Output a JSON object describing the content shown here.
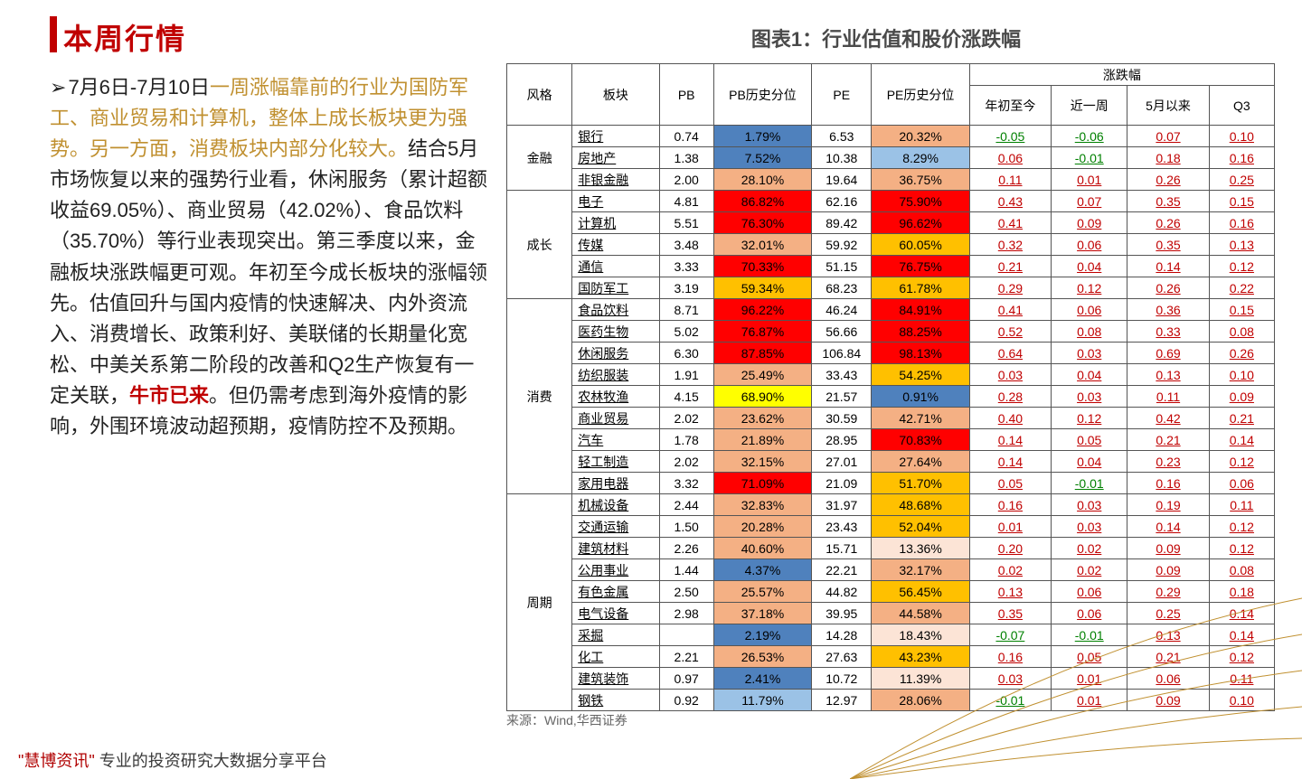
{
  "title": "本周行情",
  "chart_title": "图表1：行业估值和股价涨跌幅",
  "source": "来源：Wind,华西证券",
  "footer_brand": "\"慧博资讯\"",
  "footer_rest": " 专业的投资研究大数据分享平台",
  "paragraph": {
    "pre_bullet": "➢",
    "lead": "7月6日-7月10日",
    "highlight": "一周涨幅靠前的行业为国防军工、商业贸易和计算机，整体上成长板块更为强势。另一方面，消费板块内部分化较大。",
    "body_a": "结合5月市场恢复以来的强势行业看，休闲服务（累计超额收益69.05%）、商业贸易（42.02%）、食品饮料（35.70%）等行业表现突出。第三季度以来，金融板块涨跌幅更可观。年初至今成长板块的涨幅领先。估值回升与国内疫情的快速解决、内外资流入、消费增长、政策利好、美联储的长期量化宽松、中美关系第二阶段的改善和Q2生产恢复有一定关联，",
    "bull": "牛市已来",
    "body_b": "。但仍需考虑到海外疫情的影响，外围环境波动超预期，疫情防控不及预期。"
  },
  "table": {
    "head1": [
      "风格",
      "板块",
      "PB",
      "PB历史分位",
      "PE",
      "PE历史分位",
      "涨跌幅"
    ],
    "head2": [
      "年初至今",
      "近一周",
      "5月以来",
      "Q3"
    ],
    "col_widths": [
      "60px",
      "80px",
      "50px",
      "90px",
      "55px",
      "90px",
      "75px",
      "70px",
      "75px",
      "60px"
    ],
    "heat_colors": {
      "dark_red": "#ff0000",
      "orange": "#ffc000",
      "light_salmon": "#f4b084",
      "light_blue": "#9bc2e6",
      "blue": "#4f81bd",
      "yellow": "#ffff00",
      "pale": "#fce4d6",
      "white": "#ffffff"
    },
    "groups": [
      {
        "name": "金融",
        "span": 3,
        "rows": [
          {
            "sector": "银行",
            "pb": "0.74",
            "pbp": "1.79%",
            "pbp_c": "blue",
            "pe": "6.53",
            "pep": "20.32%",
            "pep_c": "light_salmon",
            "chg": [
              "-0.05",
              "-0.06",
              "0.07",
              "0.10"
            ]
          },
          {
            "sector": "房地产",
            "pb": "1.38",
            "pbp": "7.52%",
            "pbp_c": "blue",
            "pe": "10.38",
            "pep": "8.29%",
            "pep_c": "light_blue",
            "chg": [
              "0.06",
              "-0.01",
              "0.18",
              "0.16"
            ]
          },
          {
            "sector": "非银金融",
            "pb": "2.00",
            "pbp": "28.10%",
            "pbp_c": "light_salmon",
            "pe": "19.64",
            "pep": "36.75%",
            "pep_c": "light_salmon",
            "chg": [
              "0.11",
              "0.01",
              "0.26",
              "0.25"
            ]
          }
        ]
      },
      {
        "name": "成长",
        "span": 5,
        "rows": [
          {
            "sector": "电子",
            "pb": "4.81",
            "pbp": "86.82%",
            "pbp_c": "dark_red",
            "pe": "62.16",
            "pep": "75.90%",
            "pep_c": "dark_red",
            "chg": [
              "0.43",
              "0.07",
              "0.35",
              "0.15"
            ]
          },
          {
            "sector": "计算机",
            "pb": "5.51",
            "pbp": "76.30%",
            "pbp_c": "dark_red",
            "pe": "89.42",
            "pep": "96.62%",
            "pep_c": "dark_red",
            "chg": [
              "0.41",
              "0.09",
              "0.26",
              "0.16"
            ]
          },
          {
            "sector": "传媒",
            "pb": "3.48",
            "pbp": "32.01%",
            "pbp_c": "light_salmon",
            "pe": "59.92",
            "pep": "60.05%",
            "pep_c": "orange",
            "chg": [
              "0.32",
              "0.06",
              "0.35",
              "0.13"
            ]
          },
          {
            "sector": "通信",
            "pb": "3.33",
            "pbp": "70.33%",
            "pbp_c": "dark_red",
            "pe": "51.15",
            "pep": "76.75%",
            "pep_c": "dark_red",
            "chg": [
              "0.21",
              "0.04",
              "0.14",
              "0.12"
            ]
          },
          {
            "sector": "国防军工",
            "pb": "3.19",
            "pbp": "59.34%",
            "pbp_c": "orange",
            "pe": "68.23",
            "pep": "61.78%",
            "pep_c": "orange",
            "chg": [
              "0.29",
              "0.12",
              "0.26",
              "0.22"
            ]
          }
        ]
      },
      {
        "name": "消费",
        "span": 9,
        "rows": [
          {
            "sector": "食品饮料",
            "pb": "8.71",
            "pbp": "96.22%",
            "pbp_c": "dark_red",
            "pe": "46.24",
            "pep": "84.91%",
            "pep_c": "dark_red",
            "chg": [
              "0.41",
              "0.06",
              "0.36",
              "0.15"
            ]
          },
          {
            "sector": "医药生物",
            "pb": "5.02",
            "pbp": "76.87%",
            "pbp_c": "dark_red",
            "pe": "56.66",
            "pep": "88.25%",
            "pep_c": "dark_red",
            "chg": [
              "0.52",
              "0.08",
              "0.33",
              "0.08"
            ]
          },
          {
            "sector": "休闲服务",
            "pb": "6.30",
            "pbp": "87.85%",
            "pbp_c": "dark_red",
            "pe": "106.84",
            "pep": "98.13%",
            "pep_c": "dark_red",
            "chg": [
              "0.64",
              "0.03",
              "0.69",
              "0.26"
            ]
          },
          {
            "sector": "纺织服装",
            "pb": "1.91",
            "pbp": "25.49%",
            "pbp_c": "light_salmon",
            "pe": "33.43",
            "pep": "54.25%",
            "pep_c": "orange",
            "chg": [
              "0.03",
              "0.04",
              "0.13",
              "0.10"
            ]
          },
          {
            "sector": "农林牧渔",
            "pb": "4.15",
            "pbp": "68.90%",
            "pbp_c": "yellow",
            "pe": "21.57",
            "pep": "0.91%",
            "pep_c": "blue",
            "chg": [
              "0.28",
              "0.03",
              "0.11",
              "0.09"
            ]
          },
          {
            "sector": "商业贸易",
            "pb": "2.02",
            "pbp": "23.62%",
            "pbp_c": "light_salmon",
            "pe": "30.59",
            "pep": "42.71%",
            "pep_c": "light_salmon",
            "chg": [
              "0.40",
              "0.12",
              "0.42",
              "0.21"
            ]
          },
          {
            "sector": "汽车",
            "pb": "1.78",
            "pbp": "21.89%",
            "pbp_c": "light_salmon",
            "pe": "28.95",
            "pep": "70.83%",
            "pep_c": "dark_red",
            "chg": [
              "0.14",
              "0.05",
              "0.21",
              "0.14"
            ]
          },
          {
            "sector": "轻工制造",
            "pb": "2.02",
            "pbp": "32.15%",
            "pbp_c": "light_salmon",
            "pe": "27.01",
            "pep": "27.64%",
            "pep_c": "light_salmon",
            "chg": [
              "0.14",
              "0.04",
              "0.23",
              "0.12"
            ]
          },
          {
            "sector": "家用电器",
            "pb": "3.32",
            "pbp": "71.09%",
            "pbp_c": "dark_red",
            "pe": "21.09",
            "pep": "51.70%",
            "pep_c": "orange",
            "chg": [
              "0.05",
              "-0.01",
              "0.16",
              "0.06"
            ]
          }
        ]
      },
      {
        "name": "周期",
        "span": 10,
        "rows": [
          {
            "sector": "机械设备",
            "pb": "2.44",
            "pbp": "32.83%",
            "pbp_c": "light_salmon",
            "pe": "31.97",
            "pep": "48.68%",
            "pep_c": "orange",
            "chg": [
              "0.16",
              "0.03",
              "0.19",
              "0.11"
            ]
          },
          {
            "sector": "交通运输",
            "pb": "1.50",
            "pbp": "20.28%",
            "pbp_c": "light_salmon",
            "pe": "23.43",
            "pep": "52.04%",
            "pep_c": "orange",
            "chg": [
              "0.01",
              "0.03",
              "0.14",
              "0.12"
            ]
          },
          {
            "sector": "建筑材料",
            "pb": "2.26",
            "pbp": "40.60%",
            "pbp_c": "light_salmon",
            "pe": "15.71",
            "pep": "13.36%",
            "pep_c": "pale",
            "chg": [
              "0.20",
              "0.02",
              "0.09",
              "0.12"
            ]
          },
          {
            "sector": "公用事业",
            "pb": "1.44",
            "pbp": "4.37%",
            "pbp_c": "blue",
            "pe": "22.21",
            "pep": "32.17%",
            "pep_c": "light_salmon",
            "chg": [
              "0.02",
              "0.02",
              "0.09",
              "0.08"
            ]
          },
          {
            "sector": "有色金属",
            "pb": "2.50",
            "pbp": "25.57%",
            "pbp_c": "light_salmon",
            "pe": "44.82",
            "pep": "56.45%",
            "pep_c": "orange",
            "chg": [
              "0.13",
              "0.06",
              "0.29",
              "0.18"
            ]
          },
          {
            "sector": "电气设备",
            "pb": "2.98",
            "pbp": "37.18%",
            "pbp_c": "light_salmon",
            "pe": "39.95",
            "pep": "44.58%",
            "pep_c": "light_salmon",
            "chg": [
              "0.35",
              "0.06",
              "0.25",
              "0.14"
            ]
          },
          {
            "sector": "采掘",
            "pb": "",
            "pbp": "2.19%",
            "pbp_c": "blue",
            "pe": "14.28",
            "pep": "18.43%",
            "pep_c": "pale",
            "chg": [
              "-0.07",
              "-0.01",
              "0.13",
              "0.14"
            ]
          },
          {
            "sector": "化工",
            "pb": "2.21",
            "pbp": "26.53%",
            "pbp_c": "light_salmon",
            "pe": "27.63",
            "pep": "43.23%",
            "pep_c": "orange",
            "chg": [
              "0.16",
              "0.05",
              "0.21",
              "0.12"
            ]
          },
          {
            "sector": "建筑装饰",
            "pb": "0.97",
            "pbp": "2.41%",
            "pbp_c": "blue",
            "pe": "10.72",
            "pep": "11.39%",
            "pep_c": "pale",
            "chg": [
              "0.03",
              "0.01",
              "0.06",
              "0.11"
            ]
          },
          {
            "sector": "钢铁",
            "pb": "0.92",
            "pbp": "11.79%",
            "pbp_c": "light_blue",
            "pe": "12.97",
            "pep": "28.06%",
            "pep_c": "light_salmon",
            "chg": [
              "-0.01",
              "0.01",
              "0.09",
              "0.10"
            ]
          }
        ]
      }
    ]
  }
}
